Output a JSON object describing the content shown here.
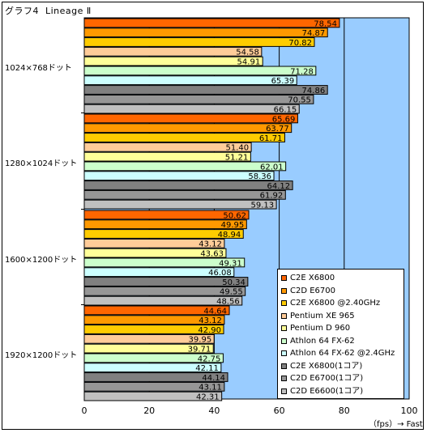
{
  "chart_data": {
    "type": "bar",
    "orientation": "horizontal",
    "title": "グラフ4  Lineage Ⅱ",
    "xlabel": "（fps）→ Fast",
    "xlim": [
      0,
      100
    ],
    "xticks": [
      0,
      20,
      40,
      60,
      80,
      100
    ],
    "grid": true,
    "legend_position": "bottom-right",
    "categories": [
      "1024×768ドット",
      "1280×1024ドット",
      "1600×1200ドット",
      "1920×1200ドット"
    ],
    "series": [
      {
        "name": "C2E X6800",
        "color": "#ff6600",
        "values": [
          78.54,
          65.69,
          50.62,
          44.64
        ]
      },
      {
        "name": "C2D E6700",
        "color": "#ff9900",
        "values": [
          74.87,
          63.77,
          49.95,
          43.12
        ]
      },
      {
        "name": "C2E X6800 @2.40GHz",
        "color": "#ffcc00",
        "values": [
          70.82,
          61.71,
          48.94,
          42.9
        ]
      },
      {
        "name": "Pentium XE 965",
        "color": "#ffcc99",
        "values": [
          54.58,
          51.4,
          43.12,
          39.95
        ]
      },
      {
        "name": "Pentium D 960",
        "color": "#ffff99",
        "values": [
          54.91,
          51.21,
          43.63,
          39.71
        ]
      },
      {
        "name": "Athlon 64 FX-62",
        "color": "#ccffcc",
        "values": [
          71.28,
          62.01,
          49.31,
          42.75
        ]
      },
      {
        "name": "Athlon 64 FX-62 @2.4GHz",
        "color": "#ccffff",
        "values": [
          65.39,
          58.36,
          46.08,
          42.11
        ]
      },
      {
        "name": "C2E X6800(1コア)",
        "color": "#808080",
        "values": [
          74.86,
          64.12,
          50.34,
          44.14
        ]
      },
      {
        "name": "C2D E6700(1コア)",
        "color": "#969696",
        "values": [
          70.55,
          61.92,
          49.55,
          43.11
        ]
      },
      {
        "name": "C2D E6600(1コア)",
        "color": "#c0c0c0",
        "values": [
          66.15,
          59.13,
          48.56,
          42.31
        ]
      }
    ]
  },
  "colors": {
    "plot_background": "#99ccff",
    "grid": "#000000"
  }
}
